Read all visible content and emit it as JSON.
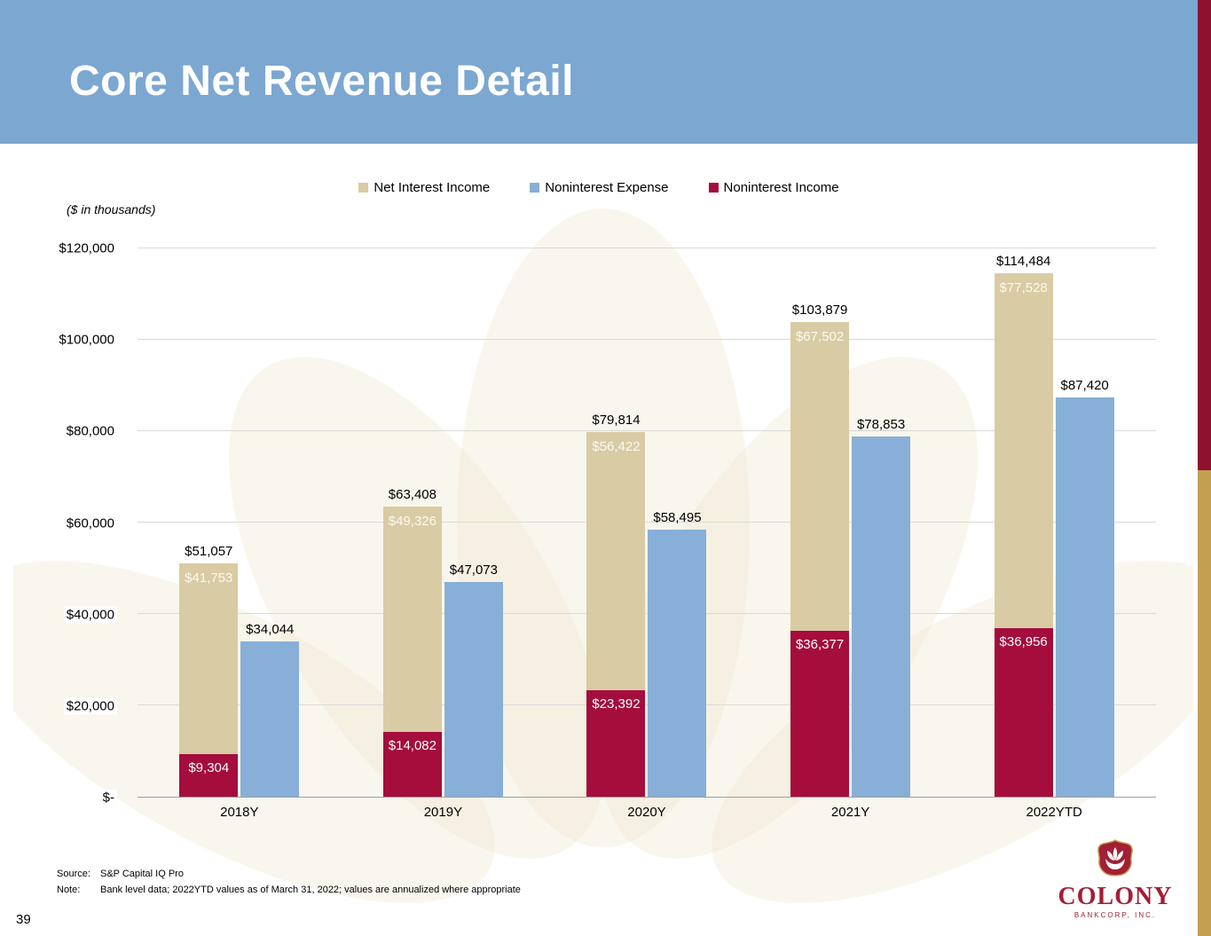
{
  "slide": {
    "title": "Core Net Revenue Detail",
    "units_note": "($ in thousands)",
    "page_number": "39"
  },
  "legend": [
    {
      "label": "Net Interest Income",
      "color": "#d9cba4"
    },
    {
      "label": "Noninterest Expense",
      "color": "#87afd7"
    },
    {
      "label": "Noninterest Income",
      "color": "#a40d3c"
    }
  ],
  "chart_data": {
    "type": "bar",
    "stacking": "Noninterest Income stacked below Net Interest Income; Noninterest Expense shown as separate adjacent bar",
    "title": "Core Net Revenue Detail",
    "ylabel": "($ in thousands)",
    "ylim": [
      0,
      120000
    ],
    "grid": true,
    "legend_position": "top",
    "categories": [
      "2018Y",
      "2019Y",
      "2020Y",
      "2021Y",
      "2022YTD"
    ],
    "series": [
      {
        "name": "Net Interest Income",
        "values": [
          41753,
          49326,
          56422,
          67502,
          77528
        ],
        "labels": [
          "$41,753",
          "$49,326",
          "$56,422",
          "$67,502",
          "$77,528"
        ]
      },
      {
        "name": "Noninterest Expense",
        "values": [
          34044,
          47073,
          58495,
          78853,
          87420
        ],
        "labels": [
          "$34,044",
          "$47,073",
          "$58,495",
          "$78,853",
          "$87,420"
        ]
      },
      {
        "name": "Noninterest Income",
        "values": [
          9304,
          14082,
          23392,
          36377,
          36956
        ],
        "labels": [
          "$9,304",
          "$14,082",
          "$23,392",
          "$36,377",
          "$36,956"
        ]
      }
    ],
    "totals": {
      "values": [
        51057,
        63408,
        79814,
        103879,
        114484
      ],
      "labels": [
        "$51,057",
        "$63,408",
        "$79,814",
        "$103,879",
        "$114,484"
      ]
    },
    "yticks": [
      {
        "value": 120000,
        "label": "$120,000"
      },
      {
        "value": 100000,
        "label": "$100,000"
      },
      {
        "value": 80000,
        "label": "$80,000"
      },
      {
        "value": 60000,
        "label": "$60,000"
      },
      {
        "value": 40000,
        "label": "$40,000"
      },
      {
        "value": 20000,
        "label": "$20,000"
      },
      {
        "value": 0,
        "label": "$-"
      }
    ]
  },
  "footer": {
    "source_label": "Source:",
    "source_value": "S&P Capital IQ Pro",
    "note_label": "Note:",
    "note_value": "Bank level data; 2022YTD values as of March 31, 2022; values are annualized where appropriate"
  },
  "logo": {
    "name": "COLONY",
    "subtitle": "BANKCORP, INC."
  },
  "colors": {
    "header_blue": "#7ba7d1",
    "bar_tan": "#d9cba4",
    "bar_blue": "#87afd7",
    "bar_maroon": "#a40d3c",
    "stripe_maroon": "#8e1230",
    "stripe_gold": "#c3a051",
    "gridline": "#d9d9d9",
    "axis": "#9e9e9e"
  }
}
